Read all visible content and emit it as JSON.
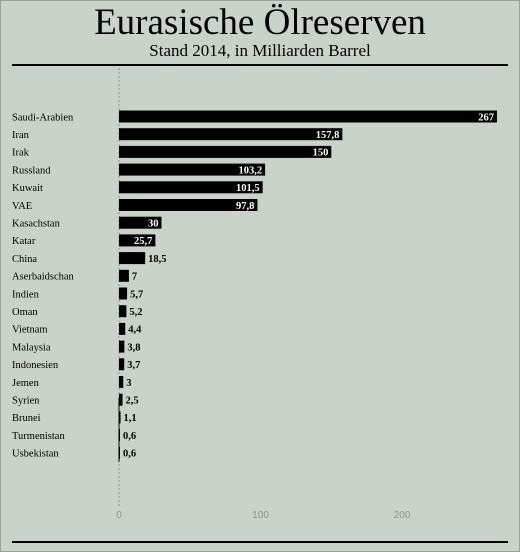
{
  "title": "Eurasische Ölreserven",
  "subtitle": "Stand 2014, in Milliarden Barrel",
  "colors": {
    "background": "#cad3ca",
    "bar": "#000000",
    "tick": "#8e978e"
  },
  "chart_data": {
    "type": "bar",
    "orientation": "horizontal",
    "title": "Eurasische Ölreserven",
    "subtitle": "Stand 2014, in Milliarden Barrel",
    "categories": [
      "Saudi-Arabien",
      "Iran",
      "Irak",
      "Russland",
      "Kuwait",
      "VAE",
      "Kasachstan",
      "Katar",
      "China",
      "Aserbaidschan",
      "Indien",
      "Oman",
      "Vietnam",
      "Malaysia",
      "Indonesien",
      "Jemen",
      "Syrien",
      "Brunei",
      "Turmenistan",
      "Usbekistan"
    ],
    "values": [
      267,
      157.8,
      150,
      103.2,
      101.5,
      97.8,
      30,
      25.7,
      18.5,
      7,
      5.7,
      5.2,
      4.4,
      3.8,
      3.7,
      3,
      2.5,
      1.1,
      0.6,
      0.6
    ],
    "value_labels": [
      "267",
      "157,8",
      "150",
      "103,2",
      "101,5",
      "97,8",
      "30",
      "25,7",
      "18,5",
      "7",
      "5,7",
      "5,2",
      "4,4",
      "3,8",
      "3,7",
      "3",
      "2,5",
      "1,1",
      "0,6",
      "0,6"
    ],
    "x_ticks": [
      "0",
      "100",
      "200"
    ],
    "xlim": [
      0,
      270
    ],
    "grid": false
  }
}
